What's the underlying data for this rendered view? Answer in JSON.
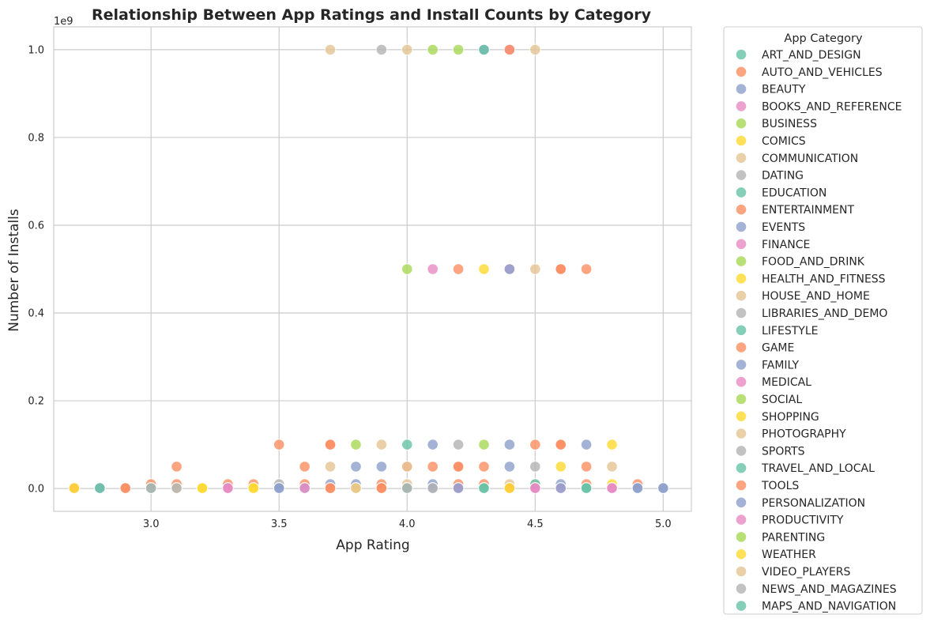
{
  "chart_data": {
    "type": "scatter",
    "title": "Relationship Between App Ratings and Install Counts by Category",
    "xlabel": "App Rating",
    "ylabel": "Number of Installs",
    "y_scale_label": "1e9",
    "xlim": [
      2.62,
      5.11
    ],
    "ylim": [
      -52000000,
      1052000000
    ],
    "x_ticks": [
      3.0,
      3.5,
      4.0,
      4.5,
      5.0
    ],
    "x_tick_labels": [
      "3.0",
      "3.5",
      "4.0",
      "4.5",
      "5.0"
    ],
    "y_ticks": [
      0,
      200000000,
      400000000,
      600000000,
      800000000,
      1000000000
    ],
    "y_tick_labels": [
      "0.0",
      "0.2",
      "0.4",
      "0.6",
      "0.8",
      "1.0"
    ],
    "grid": true,
    "legend_title": "App Category",
    "legend_position": "outside-right",
    "palette": [
      "#66c2a5",
      "#fc8d62",
      "#8da0cb",
      "#e78ac3",
      "#a6d854",
      "#ffd92f",
      "#e5c494",
      "#b3b3b3"
    ],
    "categories": [
      "ART_AND_DESIGN",
      "AUTO_AND_VEHICLES",
      "BEAUTY",
      "BOOKS_AND_REFERENCE",
      "BUSINESS",
      "COMICS",
      "COMMUNICATION",
      "DATING",
      "EDUCATION",
      "ENTERTAINMENT",
      "EVENTS",
      "FINANCE",
      "FOOD_AND_DRINK",
      "HEALTH_AND_FITNESS",
      "HOUSE_AND_HOME",
      "LIBRARIES_AND_DEMO",
      "LIFESTYLE",
      "GAME",
      "FAMILY",
      "MEDICAL",
      "SOCIAL",
      "SHOPPING",
      "PHOTOGRAPHY",
      "SPORTS",
      "TRAVEL_AND_LOCAL",
      "TOOLS",
      "PERSONALIZATION",
      "PRODUCTIVITY",
      "PARENTING",
      "WEATHER",
      "VIDEO_PLAYERS",
      "NEWS_AND_MAGAZINES",
      "MAPS_AND_NAVIGATION"
    ],
    "points": [
      {
        "x": 3.7,
        "y": 1000000000,
        "c": 22
      },
      {
        "x": 3.9,
        "y": 1000000000,
        "c": 23
      },
      {
        "x": 4.0,
        "y": 1000000000,
        "c": 22
      },
      {
        "x": 4.1,
        "y": 1000000000,
        "c": 20
      },
      {
        "x": 4.2,
        "y": 1000000000,
        "c": 20
      },
      {
        "x": 4.3,
        "y": 1000000000,
        "c": 18
      },
      {
        "x": 4.3,
        "y": 1000000000,
        "c": 24
      },
      {
        "x": 4.4,
        "y": 1000000000,
        "c": 27
      },
      {
        "x": 4.4,
        "y": 1000000000,
        "c": 25
      },
      {
        "x": 4.5,
        "y": 1000000000,
        "c": 30
      },
      {
        "x": 4.0,
        "y": 500000000,
        "c": 20
      },
      {
        "x": 4.1,
        "y": 500000000,
        "c": 27
      },
      {
        "x": 4.2,
        "y": 500000000,
        "c": 25
      },
      {
        "x": 4.3,
        "y": 500000000,
        "c": 29
      },
      {
        "x": 4.4,
        "y": 500000000,
        "c": 27
      },
      {
        "x": 4.4,
        "y": 500000000,
        "c": 26
      },
      {
        "x": 4.5,
        "y": 500000000,
        "c": 22
      },
      {
        "x": 4.6,
        "y": 500000000,
        "c": 25
      },
      {
        "x": 4.6,
        "y": 500000000,
        "c": 9
      },
      {
        "x": 4.7,
        "y": 500000000,
        "c": 25
      },
      {
        "x": 3.5,
        "y": 100000000,
        "c": 17
      },
      {
        "x": 3.7,
        "y": 100000000,
        "c": 25
      },
      {
        "x": 3.7,
        "y": 100000000,
        "c": 17
      },
      {
        "x": 3.8,
        "y": 100000000,
        "c": 20
      },
      {
        "x": 3.9,
        "y": 100000000,
        "c": 22
      },
      {
        "x": 4.0,
        "y": 100000000,
        "c": 16
      },
      {
        "x": 4.1,
        "y": 100000000,
        "c": 18
      },
      {
        "x": 4.2,
        "y": 100000000,
        "c": 23
      },
      {
        "x": 4.3,
        "y": 100000000,
        "c": 20
      },
      {
        "x": 4.4,
        "y": 100000000,
        "c": 18
      },
      {
        "x": 4.5,
        "y": 100000000,
        "c": 17
      },
      {
        "x": 4.6,
        "y": 100000000,
        "c": 25
      },
      {
        "x": 4.6,
        "y": 100000000,
        "c": 9
      },
      {
        "x": 4.7,
        "y": 100000000,
        "c": 18
      },
      {
        "x": 4.8,
        "y": 100000000,
        "c": 21
      },
      {
        "x": 3.1,
        "y": 50000000,
        "c": 17
      },
      {
        "x": 3.6,
        "y": 50000000,
        "c": 17
      },
      {
        "x": 3.7,
        "y": 50000000,
        "c": 22
      },
      {
        "x": 3.8,
        "y": 50000000,
        "c": 18
      },
      {
        "x": 3.9,
        "y": 50000000,
        "c": 26
      },
      {
        "x": 4.0,
        "y": 50000000,
        "c": 25
      },
      {
        "x": 4.0,
        "y": 50000000,
        "c": 6
      },
      {
        "x": 4.1,
        "y": 50000000,
        "c": 25
      },
      {
        "x": 4.2,
        "y": 50000000,
        "c": 9
      },
      {
        "x": 4.2,
        "y": 50000000,
        "c": 17
      },
      {
        "x": 4.3,
        "y": 50000000,
        "c": 25
      },
      {
        "x": 4.4,
        "y": 50000000,
        "c": 18
      },
      {
        "x": 4.5,
        "y": 50000000,
        "c": 23
      },
      {
        "x": 4.6,
        "y": 50000000,
        "c": 21
      },
      {
        "x": 4.7,
        "y": 50000000,
        "c": 25
      },
      {
        "x": 4.8,
        "y": 50000000,
        "c": 22
      },
      {
        "x": 3.0,
        "y": 10000000,
        "c": 17
      },
      {
        "x": 3.1,
        "y": 10000000,
        "c": 25
      },
      {
        "x": 3.3,
        "y": 10000000,
        "c": 9
      },
      {
        "x": 3.4,
        "y": 10000000,
        "c": 1
      },
      {
        "x": 3.5,
        "y": 10000000,
        "c": 23
      },
      {
        "x": 3.6,
        "y": 10000000,
        "c": 17
      },
      {
        "x": 3.7,
        "y": 10000000,
        "c": 18
      },
      {
        "x": 3.8,
        "y": 10000000,
        "c": 18
      },
      {
        "x": 3.9,
        "y": 10000000,
        "c": 17
      },
      {
        "x": 4.0,
        "y": 10000000,
        "c": 22
      },
      {
        "x": 4.1,
        "y": 10000000,
        "c": 18
      },
      {
        "x": 4.2,
        "y": 10000000,
        "c": 25
      },
      {
        "x": 4.3,
        "y": 10000000,
        "c": 17
      },
      {
        "x": 4.4,
        "y": 10000000,
        "c": 30
      },
      {
        "x": 4.5,
        "y": 10000000,
        "c": 6
      },
      {
        "x": 4.5,
        "y": 10000000,
        "c": 24
      },
      {
        "x": 4.6,
        "y": 10000000,
        "c": 18
      },
      {
        "x": 4.7,
        "y": 10000000,
        "c": 17
      },
      {
        "x": 4.8,
        "y": 10000000,
        "c": 13
      },
      {
        "x": 4.9,
        "y": 10000000,
        "c": 25
      },
      {
        "x": 2.7,
        "y": 1000000,
        "c": 17
      },
      {
        "x": 2.7,
        "y": 1000000,
        "c": 21
      },
      {
        "x": 2.8,
        "y": 1000000,
        "c": 18
      },
      {
        "x": 2.8,
        "y": 1000000,
        "c": 24
      },
      {
        "x": 2.9,
        "y": 1000000,
        "c": 25
      },
      {
        "x": 2.9,
        "y": 1000000,
        "c": 17
      },
      {
        "x": 3.0,
        "y": 1000000,
        "c": 24
      },
      {
        "x": 3.0,
        "y": 1000000,
        "c": 23
      },
      {
        "x": 3.1,
        "y": 1000000,
        "c": 14
      },
      {
        "x": 3.1,
        "y": 1000000,
        "c": 31
      },
      {
        "x": 3.2,
        "y": 1000000,
        "c": 5
      },
      {
        "x": 3.2,
        "y": 1000000,
        "c": 29
      },
      {
        "x": 3.3,
        "y": 1000000,
        "c": 11
      },
      {
        "x": 3.3,
        "y": 1000000,
        "c": 19
      },
      {
        "x": 3.4,
        "y": 1000000,
        "c": 13
      },
      {
        "x": 3.4,
        "y": 1000000,
        "c": 21
      },
      {
        "x": 3.5,
        "y": 1000000,
        "c": 18
      },
      {
        "x": 3.5,
        "y": 1000000,
        "c": 26
      },
      {
        "x": 3.6,
        "y": 1000000,
        "c": 26
      },
      {
        "x": 3.6,
        "y": 1000000,
        "c": 27
      },
      {
        "x": 3.7,
        "y": 1000000,
        "c": 25
      },
      {
        "x": 3.7,
        "y": 1000000,
        "c": 17
      },
      {
        "x": 3.8,
        "y": 1000000,
        "c": 29
      },
      {
        "x": 3.8,
        "y": 1000000,
        "c": 22
      },
      {
        "x": 3.9,
        "y": 1000000,
        "c": 25
      },
      {
        "x": 3.9,
        "y": 1000000,
        "c": 9
      },
      {
        "x": 4.0,
        "y": 1000000,
        "c": 24
      },
      {
        "x": 4.0,
        "y": 1000000,
        "c": 31
      },
      {
        "x": 4.1,
        "y": 1000000,
        "c": 26
      },
      {
        "x": 4.1,
        "y": 1000000,
        "c": 23
      },
      {
        "x": 4.2,
        "y": 1000000,
        "c": 27
      },
      {
        "x": 4.2,
        "y": 1000000,
        "c": 26
      },
      {
        "x": 4.3,
        "y": 1000000,
        "c": 16
      },
      {
        "x": 4.3,
        "y": 1000000,
        "c": 24
      },
      {
        "x": 4.4,
        "y": 1000000,
        "c": 17
      },
      {
        "x": 4.4,
        "y": 1000000,
        "c": 13
      },
      {
        "x": 4.5,
        "y": 1000000,
        "c": 19
      },
      {
        "x": 4.5,
        "y": 1000000,
        "c": 27
      },
      {
        "x": 4.6,
        "y": 1000000,
        "c": 11
      },
      {
        "x": 4.6,
        "y": 1000000,
        "c": 26
      },
      {
        "x": 4.7,
        "y": 1000000,
        "c": 24
      },
      {
        "x": 4.7,
        "y": 1000000,
        "c": 16
      },
      {
        "x": 4.8,
        "y": 1000000,
        "c": 19
      },
      {
        "x": 4.8,
        "y": 1000000,
        "c": 27
      },
      {
        "x": 4.9,
        "y": 1000000,
        "c": 26
      },
      {
        "x": 4.9,
        "y": 1000000,
        "c": 18
      },
      {
        "x": 5.0,
        "y": 1000000,
        "c": 18
      },
      {
        "x": 5.0,
        "y": 1000000,
        "c": 26
      }
    ]
  }
}
